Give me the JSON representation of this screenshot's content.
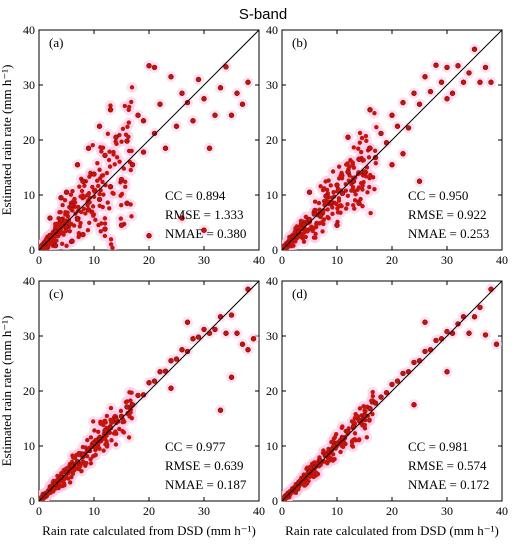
{
  "figure": {
    "title": "S-band",
    "colors": {
      "point": "#c4140c",
      "point_edge": "#7a0c05",
      "halo": "#f7c8ea",
      "diagonal": "#000000",
      "axes": "#000000"
    }
  },
  "chart_data": [
    {
      "type": "scatter",
      "panel": "(a)",
      "xlabel": "",
      "ylabel": "Estimated rain rate (mm h⁻¹)",
      "xlim": [
        0,
        40
      ],
      "ylim": [
        0,
        40
      ],
      "x_ticks": [
        "0",
        "10",
        "20",
        "30",
        "40"
      ],
      "y_ticks": [
        "0",
        "10",
        "20",
        "30",
        "40"
      ],
      "reference_line": "1:1",
      "stats": {
        "cc": "CC = 0.894",
        "rmse": "RMSE = 1.333",
        "nmae": "NMAE = 0.380"
      },
      "points": [
        [
          1,
          1.2
        ],
        [
          2,
          2.5
        ],
        [
          3,
          3.4
        ],
        [
          4,
          5.5
        ],
        [
          5,
          4.2
        ],
        [
          6,
          8.1
        ],
        [
          7,
          5.6
        ],
        [
          8,
          12.5
        ],
        [
          9,
          7.3
        ],
        [
          10,
          13.8
        ],
        [
          11,
          9.2
        ],
        [
          12,
          17.2
        ],
        [
          13,
          11.5
        ],
        [
          14,
          20.5
        ],
        [
          15,
          12.8
        ],
        [
          16,
          19.8
        ],
        [
          17,
          15.5
        ],
        [
          18,
          24.5
        ],
        [
          19,
          17.8
        ],
        [
          20,
          33.5
        ],
        [
          21,
          21.2
        ],
        [
          22,
          26.5
        ],
        [
          23,
          18.5
        ],
        [
          24,
          31.5
        ],
        [
          25,
          22.5
        ],
        [
          26,
          28.5
        ],
        [
          27,
          26.8
        ],
        [
          28,
          23.5
        ],
        [
          29,
          31
        ],
        [
          30,
          27.5
        ],
        [
          31,
          18.5
        ],
        [
          32,
          24.5
        ],
        [
          33,
          29.5
        ],
        [
          34,
          33.3
        ],
        [
          35,
          24.5
        ],
        [
          36,
          28.5
        ],
        [
          37,
          26.5
        ],
        [
          38,
          30.5
        ],
        [
          19,
          23.5
        ],
        [
          21,
          33.2
        ],
        [
          13,
          25.5
        ],
        [
          11,
          22.5
        ],
        [
          8,
          2.8
        ],
        [
          6,
          1.6
        ],
        [
          15,
          4.5
        ],
        [
          20,
          2.6
        ],
        [
          30,
          3.6
        ],
        [
          26,
          5.8
        ],
        [
          16,
          8.5
        ],
        [
          12,
          3.8
        ],
        [
          5,
          10.5
        ],
        [
          7,
          15.5
        ],
        [
          9,
          18.5
        ],
        [
          3,
          0.8
        ],
        [
          2,
          5.8
        ],
        [
          4,
          9.5
        ]
      ]
    },
    {
      "type": "scatter",
      "panel": "(b)",
      "xlabel": "",
      "ylabel": "",
      "xlim": [
        0,
        40
      ],
      "ylim": [
        0,
        40
      ],
      "x_ticks": [
        "0",
        "10",
        "20",
        "30",
        "40"
      ],
      "y_ticks": [
        "0",
        "10",
        "20",
        "30",
        "40"
      ],
      "reference_line": "1:1",
      "stats": {
        "cc": "CC = 0.950",
        "rmse": "RMSE = 0.922",
        "nmae": "NMAE = 0.253"
      },
      "points": [
        [
          1,
          1.1
        ],
        [
          2,
          2.4
        ],
        [
          3,
          3.3
        ],
        [
          4,
          4.6
        ],
        [
          5,
          5.5
        ],
        [
          6,
          7.2
        ],
        [
          7,
          6.3
        ],
        [
          8,
          9.8
        ],
        [
          9,
          8.6
        ],
        [
          10,
          11.8
        ],
        [
          11,
          10.3
        ],
        [
          12,
          14.2
        ],
        [
          13,
          12.5
        ],
        [
          14,
          16.5
        ],
        [
          15,
          14.2
        ],
        [
          16,
          18.5
        ],
        [
          17,
          16.8
        ],
        [
          18,
          21.2
        ],
        [
          19,
          19.5
        ],
        [
          20,
          24.5
        ],
        [
          21,
          22.5
        ],
        [
          22,
          26.8
        ],
        [
          23,
          22.2
        ],
        [
          24,
          28.5
        ],
        [
          25,
          26.5
        ],
        [
          26,
          31.5
        ],
        [
          27,
          28.8
        ],
        [
          28,
          33.6
        ],
        [
          29,
          30.5
        ],
        [
          30,
          33.2
        ],
        [
          31,
          28.5
        ],
        [
          32,
          33.5
        ],
        [
          33,
          30.5
        ],
        [
          34,
          32.2
        ],
        [
          35,
          36.5
        ],
        [
          36,
          30.5
        ],
        [
          37,
          33.2
        ],
        [
          38,
          30.5
        ],
        [
          16,
          25.5
        ],
        [
          12,
          20.5
        ],
        [
          20,
          15.5
        ],
        [
          25,
          12.5
        ],
        [
          30,
          27.5
        ],
        [
          22,
          17.5
        ],
        [
          10,
          4.5
        ],
        [
          14,
          8.5
        ],
        [
          5,
          10.5
        ]
      ]
    },
    {
      "type": "scatter",
      "panel": "(c)",
      "xlabel": "Rain rate calculated  from DSD (mm h⁻¹)",
      "ylabel": "Estimated rain rate (mm h⁻¹)",
      "xlim": [
        0,
        40
      ],
      "ylim": [
        0,
        40
      ],
      "x_ticks": [
        "0",
        "10",
        "20",
        "30",
        "40"
      ],
      "y_ticks": [
        "0",
        "10",
        "20",
        "30",
        "40"
      ],
      "reference_line": "1:1",
      "stats": {
        "cc": "CC = 0.977",
        "rmse": "RMSE = 0.639",
        "nmae": "NMAE = 0.187"
      },
      "points": [
        [
          1,
          1
        ],
        [
          2,
          2.2
        ],
        [
          3,
          3.1
        ],
        [
          4,
          4.3
        ],
        [
          5,
          5.2
        ],
        [
          6,
          6.4
        ],
        [
          7,
          7.1
        ],
        [
          8,
          8.5
        ],
        [
          9,
          9.2
        ],
        [
          10,
          10.6
        ],
        [
          11,
          11.2
        ],
        [
          12,
          12.8
        ],
        [
          13,
          13.3
        ],
        [
          14,
          14.9
        ],
        [
          15,
          15.4
        ],
        [
          16,
          17.1
        ],
        [
          17,
          17.5
        ],
        [
          18,
          19.2
        ],
        [
          19,
          19.3
        ],
        [
          20,
          21.5
        ],
        [
          21,
          21.8
        ],
        [
          22,
          23.5
        ],
        [
          23,
          23.6
        ],
        [
          24,
          25.5
        ],
        [
          25,
          25.8
        ],
        [
          26,
          27.5
        ],
        [
          27,
          27.2
        ],
        [
          28,
          29.5
        ],
        [
          29,
          29.8
        ],
        [
          30,
          31.2
        ],
        [
          31,
          30.5
        ],
        [
          32,
          31.2
        ],
        [
          33,
          33.5
        ],
        [
          34,
          30.5
        ],
        [
          35,
          33.8
        ],
        [
          36,
          30.5
        ],
        [
          37,
          28.5
        ],
        [
          38,
          38.5
        ],
        [
          33,
          16.5
        ],
        [
          35,
          22.5
        ],
        [
          38,
          27.5
        ],
        [
          39,
          29.5
        ],
        [
          27,
          32.5
        ],
        [
          24,
          20.5
        ]
      ]
    },
    {
      "type": "scatter",
      "panel": "(d)",
      "xlabel": "Rain rate calculated  from DSD (mm h⁻¹)",
      "ylabel": "",
      "xlim": [
        0,
        40
      ],
      "ylim": [
        0,
        40
      ],
      "x_ticks": [
        "0",
        "10",
        "20",
        "30",
        "40"
      ],
      "y_ticks": [
        "0",
        "10",
        "20",
        "30",
        "40"
      ],
      "reference_line": "1:1",
      "stats": {
        "cc": "CC = 0.981",
        "rmse": "RMSE = 0.574",
        "nmae": "NMAE = 0.172"
      },
      "points": [
        [
          1,
          1.1
        ],
        [
          2,
          2.1
        ],
        [
          3,
          3.2
        ],
        [
          4,
          4.2
        ],
        [
          5,
          5.3
        ],
        [
          6,
          6.2
        ],
        [
          7,
          7.3
        ],
        [
          8,
          8.4
        ],
        [
          9,
          9.3
        ],
        [
          10,
          10.5
        ],
        [
          11,
          11.4
        ],
        [
          12,
          12.6
        ],
        [
          13,
          13.5
        ],
        [
          14,
          14.7
        ],
        [
          15,
          15.6
        ],
        [
          16,
          16.8
        ],
        [
          17,
          17.8
        ],
        [
          18,
          18.9
        ],
        [
          19,
          19.7
        ],
        [
          20,
          21.2
        ],
        [
          21,
          21.8
        ],
        [
          22,
          23.2
        ],
        [
          23,
          23.5
        ],
        [
          24,
          25.2
        ],
        [
          25,
          25.5
        ],
        [
          26,
          27.2
        ],
        [
          27,
          27.5
        ],
        [
          28,
          29.2
        ],
        [
          29,
          29.5
        ],
        [
          30,
          30.8
        ],
        [
          31,
          30.5
        ],
        [
          32,
          32.2
        ],
        [
          33,
          33.5
        ],
        [
          34,
          30.5
        ],
        [
          35,
          33.5
        ],
        [
          36,
          35.2
        ],
        [
          37,
          30.2
        ],
        [
          38,
          38.5
        ],
        [
          39,
          28.5
        ],
        [
          26,
          32.5
        ],
        [
          24,
          17.5
        ],
        [
          30,
          23.5
        ]
      ]
    }
  ]
}
